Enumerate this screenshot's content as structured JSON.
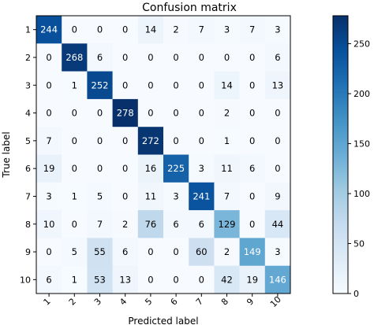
{
  "chart_data": {
    "type": "heatmap",
    "title": "Confusion matrix",
    "xlabel": "Predicted label",
    "ylabel": "True label",
    "x_categories": [
      "1",
      "2",
      "3",
      "4",
      "5",
      "6",
      "7",
      "8",
      "9",
      "10"
    ],
    "y_categories": [
      "1",
      "2",
      "3",
      "4",
      "5",
      "6",
      "7",
      "8",
      "9",
      "10"
    ],
    "matrix": [
      [
        244,
        0,
        0,
        0,
        14,
        2,
        7,
        3,
        7,
        3
      ],
      [
        0,
        268,
        6,
        0,
        0,
        0,
        0,
        0,
        0,
        6
      ],
      [
        0,
        1,
        252,
        0,
        0,
        0,
        0,
        14,
        0,
        13
      ],
      [
        0,
        0,
        0,
        278,
        0,
        0,
        0,
        2,
        0,
        0
      ],
      [
        7,
        0,
        0,
        0,
        272,
        0,
        0,
        1,
        0,
        0
      ],
      [
        19,
        0,
        0,
        0,
        16,
        225,
        3,
        11,
        6,
        0
      ],
      [
        3,
        1,
        5,
        0,
        11,
        3,
        241,
        7,
        0,
        9
      ],
      [
        10,
        0,
        7,
        2,
        76,
        6,
        6,
        129,
        0,
        44
      ],
      [
        0,
        5,
        55,
        6,
        0,
        0,
        60,
        2,
        149,
        3
      ],
      [
        6,
        1,
        53,
        13,
        0,
        0,
        0,
        42,
        19,
        146
      ]
    ],
    "colormap": "Blues",
    "vmin": 0,
    "vmax": 278,
    "colorbar_ticks": [
      0,
      50,
      100,
      150,
      200,
      250
    ],
    "grid": false
  }
}
